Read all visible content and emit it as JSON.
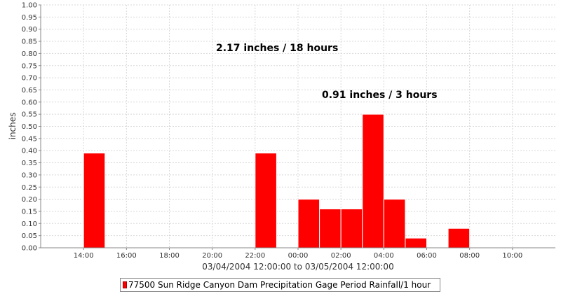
{
  "chart_data": {
    "type": "bar",
    "xlabel": "03/04/2004 12:00:00 to 03/05/2004 12:00:00",
    "ylabel": "inches",
    "ylim": [
      0,
      1.0
    ],
    "x_range_hours": [
      "03/04/2004 12:00",
      "03/05/2004 12:00"
    ],
    "y_ticks": [
      "0.00",
      "0.05",
      "0.10",
      "0.15",
      "0.20",
      "0.25",
      "0.30",
      "0.35",
      "0.40",
      "0.45",
      "0.50",
      "0.55",
      "0.60",
      "0.65",
      "0.70",
      "0.75",
      "0.80",
      "0.85",
      "0.90",
      "0.95",
      "1.00"
    ],
    "x_ticks": [
      {
        "label": "14:00",
        "hour": 14
      },
      {
        "label": "16:00",
        "hour": 16
      },
      {
        "label": "18:00",
        "hour": 18
      },
      {
        "label": "20:00",
        "hour": 20
      },
      {
        "label": "22:00",
        "hour": 22
      },
      {
        "label": "00:00",
        "hour": 24
      },
      {
        "label": "02:00",
        "hour": 26
      },
      {
        "label": "04:00",
        "hour": 28
      },
      {
        "label": "06:00",
        "hour": 30
      },
      {
        "label": "08:00",
        "hour": 32
      },
      {
        "label": "10:00",
        "hour": 34
      }
    ],
    "series": [
      {
        "name": "77500 Sun Ridge Canyon Dam Precipitation Gage Period Rainfall/1 hour",
        "color": "#ff0000",
        "points": [
          {
            "start": "03/04/2004 14:00",
            "start_hour": 14,
            "value": 0.39
          },
          {
            "start": "03/04/2004 22:00",
            "start_hour": 22,
            "value": 0.39
          },
          {
            "start": "03/05/2004 00:00",
            "start_hour": 24,
            "value": 0.2
          },
          {
            "start": "03/05/2004 01:00",
            "start_hour": 25,
            "value": 0.16
          },
          {
            "start": "03/05/2004 02:00",
            "start_hour": 26,
            "value": 0.16
          },
          {
            "start": "03/05/2004 03:00",
            "start_hour": 27,
            "value": 0.55
          },
          {
            "start": "03/05/2004 04:00",
            "start_hour": 28,
            "value": 0.2
          },
          {
            "start": "03/05/2004 05:00",
            "start_hour": 29,
            "value": 0.04
          },
          {
            "start": "03/05/2004 07:00",
            "start_hour": 31,
            "value": 0.08
          }
        ]
      }
    ],
    "annotations": [
      {
        "text": "2.17 inches / 18 hours"
      },
      {
        "text": "0.91 inches / 3 hours"
      }
    ],
    "grid": true,
    "legend_position": "bottom-center"
  }
}
